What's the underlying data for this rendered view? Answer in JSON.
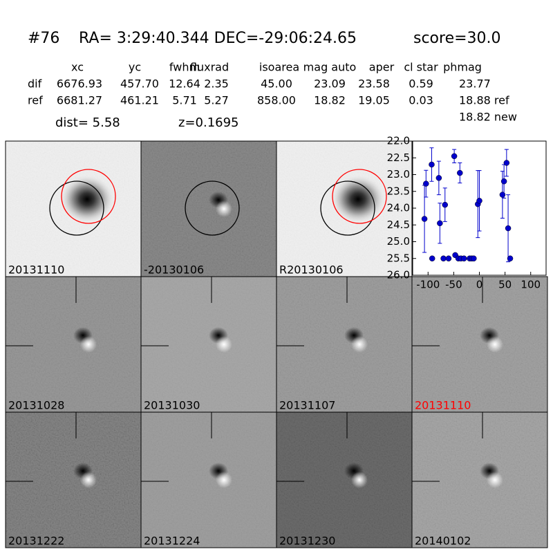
{
  "header": {
    "id": "#76",
    "coords": "RA= 3:29:40.344 DEC=-29:06:24.65",
    "score": "score=30.0"
  },
  "table": {
    "columns": [
      "xc",
      "yc",
      "fwhm",
      "fluxrad",
      "isoarea",
      "mag auto",
      "aper",
      "cl star",
      "phmag"
    ],
    "rows": [
      [
        "dif",
        "6676.93",
        "457.70",
        "12.64",
        "2.35",
        "45.00",
        "23.09",
        "23.58",
        "0.59",
        "23.77"
      ],
      [
        "ref",
        "6681.27",
        "461.21",
        "5.71",
        "5.27",
        "858.00",
        "18.82",
        "19.05",
        "0.03",
        "18.88 ref"
      ]
    ],
    "extra": "18.82 new"
  },
  "dist": "dist=  5.58",
  "redshift": "z=0.1695",
  "stamps": [
    "20131110",
    "-20130106",
    "R20130106",
    "20131028",
    "20131030",
    "20131107",
    "20131110",
    "20131222",
    "20131224",
    "20131230",
    "20140102"
  ],
  "chart_data": {
    "type": "scatter",
    "color": "#0000cc",
    "x": [
      -107,
      -104,
      -93,
      -92,
      -79,
      -77,
      -70,
      -67,
      -60,
      -49,
      -47,
      -41,
      -38,
      -36,
      -30,
      -19,
      -15,
      -11,
      -3,
      0,
      45,
      48,
      53,
      56,
      60
    ],
    "values": [
      24.32,
      23.27,
      22.7,
      25.5,
      23.1,
      24.45,
      25.5,
      23.9,
      25.5,
      22.45,
      25.4,
      25.5,
      22.95,
      25.5,
      25.5,
      25.5,
      25.5,
      25.5,
      23.88,
      23.78,
      23.6,
      23.2,
      22.65,
      24.6,
      25.5
    ],
    "errors": [
      1.0,
      0.4,
      0.5,
      0.05,
      0.5,
      0.6,
      0.05,
      0.5,
      0.05,
      0.2,
      0.05,
      0.05,
      0.3,
      0.05,
      0.05,
      0.05,
      0.05,
      0.05,
      1.0,
      0.9,
      0.7,
      0.5,
      0.4,
      1.0,
      0.05
    ],
    "xlim": [
      -130,
      130
    ],
    "xticks": [
      -100,
      -50,
      0,
      50,
      100
    ],
    "ylim": [
      26.0,
      22.0
    ],
    "yticks": [
      {
        "value": 22,
        "label": "22.0"
      },
      {
        "value": 22.5,
        "label": "22.5"
      },
      {
        "value": 23,
        "label": "23.0"
      },
      {
        "value": 23.5,
        "label": "23.5"
      },
      {
        "value": 24,
        "label": "24.0"
      },
      {
        "value": 24.5,
        "label": "24.5"
      },
      {
        "value": 25,
        "label": "25.0"
      },
      {
        "value": 25.5,
        "label": "25.5"
      },
      {
        "value": 26,
        "label": "26.0"
      }
    ]
  }
}
